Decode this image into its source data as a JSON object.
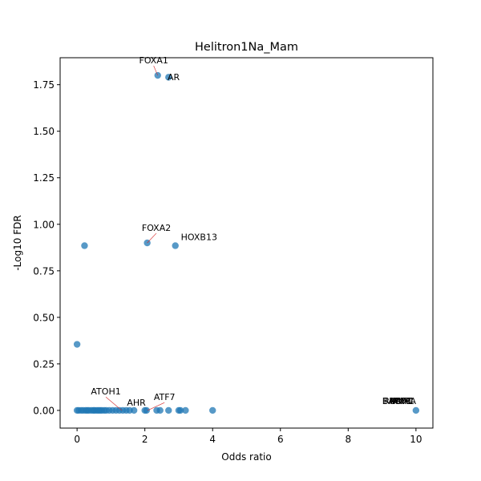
{
  "chart_data": {
    "type": "scatter",
    "title": "Helitron1Na_Mam",
    "xlabel": "Odds ratio",
    "ylabel": "-Log10 FDR",
    "xlim": [
      -0.5,
      10.5
    ],
    "ylim": [
      -0.095,
      1.895
    ],
    "xticks": [
      0,
      2,
      4,
      6,
      8,
      10
    ],
    "yticks": [
      0.0,
      0.25,
      0.5,
      0.75,
      1.0,
      1.25,
      1.5,
      1.75
    ],
    "ytick_labels": [
      "0.00",
      "0.25",
      "0.50",
      "0.75",
      "1.00",
      "1.25",
      "1.50",
      "1.75"
    ],
    "grid": false,
    "point_color": "#1f77b4",
    "connector_color": "#d62728",
    "points": [
      {
        "x": 2.38,
        "y": 1.8
      },
      {
        "x": 2.7,
        "y": 1.79
      },
      {
        "x": 0.22,
        "y": 0.885
      },
      {
        "x": 2.07,
        "y": 0.9
      },
      {
        "x": 2.9,
        "y": 0.885
      },
      {
        "x": 0.0,
        "y": 0.355
      },
      {
        "x": 0.0,
        "y": 0.0
      },
      {
        "x": 0.05,
        "y": 0.0
      },
      {
        "x": 0.12,
        "y": 0.0
      },
      {
        "x": 0.18,
        "y": 0.0
      },
      {
        "x": 0.25,
        "y": 0.0
      },
      {
        "x": 0.3,
        "y": 0.0
      },
      {
        "x": 0.35,
        "y": 0.0
      },
      {
        "x": 0.42,
        "y": 0.0
      },
      {
        "x": 0.48,
        "y": 0.0
      },
      {
        "x": 0.52,
        "y": 0.0
      },
      {
        "x": 0.58,
        "y": 0.0
      },
      {
        "x": 0.63,
        "y": 0.0
      },
      {
        "x": 0.68,
        "y": 0.0
      },
      {
        "x": 0.73,
        "y": 0.0
      },
      {
        "x": 0.8,
        "y": 0.0
      },
      {
        "x": 0.86,
        "y": 0.0
      },
      {
        "x": 0.95,
        "y": 0.0
      },
      {
        "x": 1.05,
        "y": 0.0
      },
      {
        "x": 1.15,
        "y": 0.0
      },
      {
        "x": 1.25,
        "y": 0.0
      },
      {
        "x": 1.35,
        "y": 0.0
      },
      {
        "x": 1.45,
        "y": 0.0
      },
      {
        "x": 1.55,
        "y": 0.0
      },
      {
        "x": 1.68,
        "y": 0.0
      },
      {
        "x": 2.0,
        "y": 0.0
      },
      {
        "x": 2.05,
        "y": 0.0
      },
      {
        "x": 2.35,
        "y": 0.0
      },
      {
        "x": 2.45,
        "y": 0.0
      },
      {
        "x": 2.7,
        "y": 0.0
      },
      {
        "x": 3.0,
        "y": 0.0
      },
      {
        "x": 3.05,
        "y": 0.0
      },
      {
        "x": 3.2,
        "y": 0.0
      },
      {
        "x": 4.0,
        "y": 0.0
      },
      {
        "x": 10.0,
        "y": 0.0
      }
    ],
    "annotations": [
      {
        "text": "FOXA1",
        "x": 2.38,
        "y": 1.8,
        "tx": 2.26,
        "ty": 1.865,
        "connector": true
      },
      {
        "text": "AR",
        "x": 2.7,
        "y": 1.79,
        "tx": 2.85,
        "ty": 1.775,
        "connector": false
      },
      {
        "text": "FOXA2",
        "x": 2.07,
        "y": 0.9,
        "tx": 2.34,
        "ty": 0.965,
        "connector": true
      },
      {
        "text": "HOXB13",
        "x": 2.9,
        "y": 0.885,
        "tx": 3.6,
        "ty": 0.915,
        "connector": false
      },
      {
        "text": "ATOH1",
        "x": 1.32,
        "y": 0.0,
        "tx": 0.85,
        "ty": 0.085,
        "connector": true
      },
      {
        "text": "AHR",
        "x": 1.45,
        "y": 0.0,
        "tx": 1.75,
        "ty": 0.025,
        "connector": false
      },
      {
        "text": "ATF7",
        "x": 2.08,
        "y": 0.0,
        "tx": 2.58,
        "ty": 0.055,
        "connector": true
      },
      {
        "text": "BACH1",
        "x": 10.0,
        "y": 0.0,
        "tx": 9.45,
        "ty": 0.035,
        "connector": false
      },
      {
        "text": "NRF1",
        "x": 10.0,
        "y": 0.0,
        "tx": 9.55,
        "ty": 0.035,
        "connector": false
      },
      {
        "text": "MITF",
        "x": 10.0,
        "y": 0.0,
        "tx": 9.55,
        "ty": 0.035,
        "connector": false
      },
      {
        "text": "MYC",
        "x": 10.0,
        "y": 0.0,
        "tx": 9.6,
        "ty": 0.035,
        "connector": false
      },
      {
        "text": "RUNX1",
        "x": 10.0,
        "y": 0.0,
        "tx": 9.5,
        "ty": 0.035,
        "connector": false
      },
      {
        "text": "RXRA",
        "x": 10.0,
        "y": 0.0,
        "tx": 9.65,
        "ty": 0.035,
        "connector": false
      }
    ]
  }
}
